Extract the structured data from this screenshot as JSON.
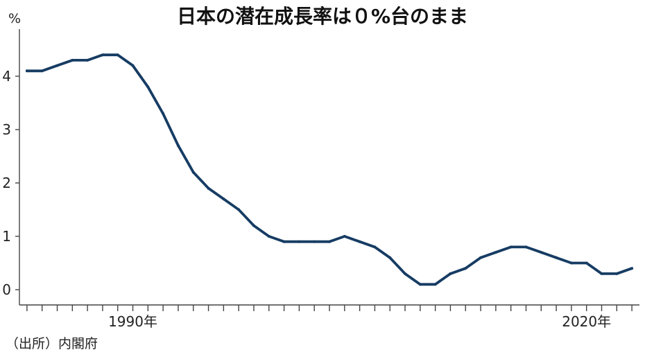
{
  "chart_data": {
    "type": "line",
    "title": "日本の潜在成長率は０%台のまま",
    "ylabel": "%",
    "source": "（出所）内閣府",
    "ylim": [
      0,
      4.5
    ],
    "yticks": [
      0,
      1,
      2,
      3,
      4
    ],
    "xlim": [
      1982.5,
      2023.5
    ],
    "xtick_labels": [
      {
        "x": 1990,
        "label": "1990年"
      },
      {
        "x": 2020,
        "label": "2020年"
      }
    ],
    "color": "#163c63",
    "series": [
      {
        "x": [
          1983,
          1984,
          1985,
          1986,
          1987,
          1988,
          1989,
          1990,
          1991,
          1992,
          1993,
          1994,
          1995,
          1996,
          1997,
          1998,
          1999,
          2000,
          2001,
          2002,
          2003,
          2004,
          2005,
          2006,
          2007,
          2008,
          2009,
          2010,
          2011,
          2012,
          2013,
          2014,
          2015,
          2016,
          2017,
          2018,
          2019,
          2020,
          2021,
          2022,
          2023
        ],
        "values": [
          4.1,
          4.1,
          4.2,
          4.3,
          4.3,
          4.4,
          4.4,
          4.2,
          3.8,
          3.3,
          2.7,
          2.2,
          1.9,
          1.7,
          1.5,
          1.2,
          1.0,
          0.9,
          0.9,
          0.9,
          0.9,
          1.0,
          0.9,
          0.8,
          0.6,
          0.3,
          0.1,
          0.1,
          0.3,
          0.4,
          0.6,
          0.7,
          0.8,
          0.8,
          0.7,
          0.6,
          0.5,
          0.5,
          0.3,
          0.3,
          0.4
        ]
      }
    ]
  }
}
